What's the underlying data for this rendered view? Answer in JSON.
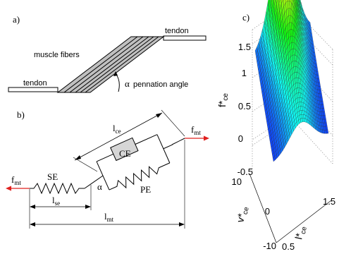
{
  "panel_a": {
    "label": "a)",
    "tendon_right": "tendon",
    "tendon_left": "tendon",
    "muscle_fibers": "muscle fibers",
    "alpha": "α",
    "pennation_angle": "pennation angle"
  },
  "panel_b": {
    "label": "b)",
    "f_left": "f",
    "f_left_sub": "mt",
    "f_right": "f",
    "f_right_sub": "mt",
    "l_ce": "l",
    "l_ce_sub": "ce",
    "ce": "CE",
    "se": "SE",
    "pe": "PE",
    "alpha": "α",
    "l_se": "l",
    "l_se_sub": "se",
    "l_mt": "l",
    "l_mt_sub": "mt"
  },
  "panel_c": {
    "label": "c)",
    "z_axis_label": "f*",
    "z_axis_sub": "ce",
    "z_ticks": [
      "1.5",
      "1",
      "0.5",
      "0",
      "-0.5"
    ],
    "v_axis_label": "v*",
    "v_axis_sub": "ce",
    "v_ticks": [
      "10",
      "0",
      "-10"
    ],
    "l_axis_label": "l*",
    "l_axis_sub": "ce",
    "l_ticks": [
      "0.5",
      "1.5"
    ]
  },
  "colors": {
    "ink": "#000000",
    "muscle_fill": "#c0c0c0",
    "arrow_red": "#e0201e",
    "ce_box_fill": "#d6d6d6"
  }
}
